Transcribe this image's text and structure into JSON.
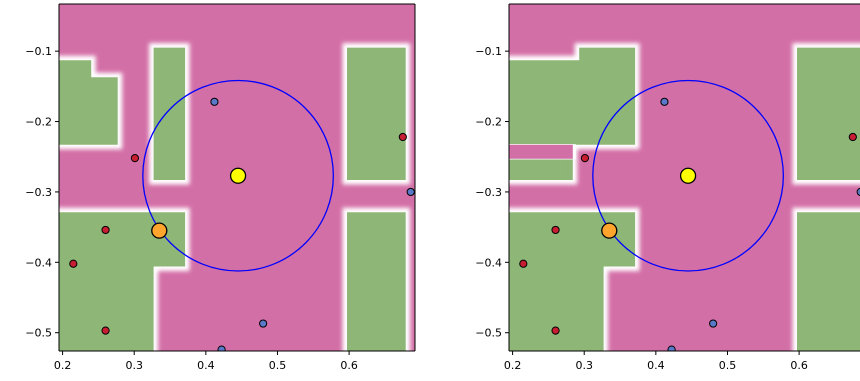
{
  "chart_data": [
    {
      "type": "heatmap",
      "xlim": [
        0.195,
        0.692
      ],
      "ylim": [
        -0.526,
        -0.033
      ],
      "x_ticks": [
        "0.2",
        "0.3",
        "0.4",
        "0.5",
        "0.6"
      ],
      "x_tick_values": [
        0.2,
        0.3,
        0.4,
        0.5,
        0.6
      ],
      "y_ticks": [
        "−0.1",
        "−0.2",
        "−0.3",
        "−0.4",
        "−0.5"
      ],
      "y_tick_values": [
        -0.1,
        -0.2,
        -0.3,
        -0.4,
        -0.5
      ],
      "grid": false,
      "regions": [
        {
          "class": "green",
          "polygon": [
            [
              0.195,
              -0.113
            ],
            [
              0.24,
              -0.113
            ],
            [
              0.24,
              -0.137
            ],
            [
              0.277,
              -0.137
            ],
            [
              0.277,
              -0.233
            ],
            [
              0.195,
              -0.233
            ]
          ]
        },
        {
          "class": "green",
          "polygon": [
            [
              0.327,
              -0.095
            ],
            [
              0.371,
              -0.095
            ],
            [
              0.371,
              -0.283
            ],
            [
              0.327,
              -0.283
            ]
          ]
        },
        {
          "class": "green",
          "polygon": [
            [
              0.195,
              -0.329
            ],
            [
              0.371,
              -0.329
            ],
            [
              0.371,
              -0.406
            ],
            [
              0.327,
              -0.406
            ],
            [
              0.327,
              -0.526
            ],
            [
              0.195,
              -0.526
            ]
          ]
        },
        {
          "class": "green",
          "polygon": [
            [
              0.597,
              -0.095
            ],
            [
              0.679,
              -0.095
            ],
            [
              0.679,
              -0.283
            ],
            [
              0.597,
              -0.283
            ]
          ]
        },
        {
          "class": "green",
          "polygon": [
            [
              0.597,
              -0.329
            ],
            [
              0.679,
              -0.329
            ],
            [
              0.679,
              -0.526
            ],
            [
              0.597,
              -0.526
            ]
          ]
        }
      ],
      "points": [
        {
          "x": 0.412,
          "y": -0.172,
          "class": "blue"
        },
        {
          "x": 0.301,
          "y": -0.252,
          "class": "red"
        },
        {
          "x": 0.675,
          "y": -0.222,
          "class": "red"
        },
        {
          "x": 0.686,
          "y": -0.3,
          "class": "blue"
        },
        {
          "x": 0.26,
          "y": -0.354,
          "class": "red"
        },
        {
          "x": 0.215,
          "y": -0.402,
          "class": "red"
        },
        {
          "x": 0.26,
          "y": -0.497,
          "class": "red"
        },
        {
          "x": 0.48,
          "y": -0.487,
          "class": "blue"
        },
        {
          "x": 0.422,
          "y": -0.524,
          "class": "blue"
        }
      ],
      "query_point": {
        "x": 0.445,
        "y": -0.277
      },
      "neighbor_point": {
        "x": 0.335,
        "y": -0.355
      },
      "circle": {
        "cx": 0.445,
        "cy": -0.277,
        "r": 0.133
      }
    },
    {
      "type": "heatmap",
      "xlim": [
        0.195,
        0.692
      ],
      "ylim": [
        -0.526,
        -0.033
      ],
      "x_ticks": [
        "0.2",
        "0.3",
        "0.4",
        "0.5",
        "0.6"
      ],
      "x_tick_values": [
        0.2,
        0.3,
        0.4,
        0.5,
        0.6
      ],
      "y_ticks": [
        "−0.1",
        "−0.2",
        "−0.3",
        "−0.4",
        "−0.5"
      ],
      "y_tick_values": [
        -0.1,
        -0.2,
        -0.3,
        -0.4,
        -0.5
      ],
      "grid": false,
      "regions": [
        {
          "class": "green",
          "polygon": [
            [
              0.195,
              -0.113
            ],
            [
              0.293,
              -0.113
            ],
            [
              0.293,
              -0.095
            ],
            [
              0.371,
              -0.095
            ],
            [
              0.371,
              -0.233
            ],
            [
              0.284,
              -0.233
            ],
            [
              0.284,
              -0.283
            ],
            [
              0.284,
              -0.283
            ],
            [
              0.195,
              -0.283
            ]
          ]
        },
        {
          "class": "green",
          "polygon": [
            [
              0.195,
              -0.253
            ],
            [
              0.277,
              -0.253
            ],
            [
              0.277,
              -0.283
            ],
            [
              0.195,
              -0.283
            ]
          ]
        },
        {
          "class": "green",
          "polygon": [
            [
              0.195,
              -0.329
            ],
            [
              0.371,
              -0.329
            ],
            [
              0.371,
              -0.406
            ],
            [
              0.327,
              -0.406
            ],
            [
              0.327,
              -0.526
            ],
            [
              0.195,
              -0.526
            ]
          ]
        },
        {
          "class": "green",
          "polygon": [
            [
              0.597,
              -0.095
            ],
            [
              0.692,
              -0.095
            ],
            [
              0.692,
              -0.283
            ],
            [
              0.597,
              -0.283
            ]
          ]
        },
        {
          "class": "green",
          "polygon": [
            [
              0.597,
              -0.329
            ],
            [
              0.692,
              -0.329
            ],
            [
              0.692,
              -0.526
            ],
            [
              0.597,
              -0.526
            ]
          ]
        }
      ],
      "holes": [
        {
          "polygon": [
            [
              0.195,
              -0.233
            ],
            [
              0.284,
              -0.233
            ],
            [
              0.284,
              -0.253
            ],
            [
              0.195,
              -0.253
            ]
          ]
        }
      ],
      "points": [
        {
          "x": 0.412,
          "y": -0.172,
          "class": "blue"
        },
        {
          "x": 0.301,
          "y": -0.252,
          "class": "red"
        },
        {
          "x": 0.675,
          "y": -0.222,
          "class": "red"
        },
        {
          "x": 0.686,
          "y": -0.3,
          "class": "blue"
        },
        {
          "x": 0.26,
          "y": -0.354,
          "class": "red"
        },
        {
          "x": 0.215,
          "y": -0.402,
          "class": "red"
        },
        {
          "x": 0.26,
          "y": -0.497,
          "class": "red"
        },
        {
          "x": 0.48,
          "y": -0.487,
          "class": "blue"
        },
        {
          "x": 0.422,
          "y": -0.524,
          "class": "blue"
        }
      ],
      "query_point": {
        "x": 0.445,
        "y": -0.277
      },
      "neighbor_point": {
        "x": 0.335,
        "y": -0.355
      },
      "circle": {
        "cx": 0.445,
        "cy": -0.277,
        "r": 0.133
      }
    }
  ],
  "colors": {
    "background": "#d36fa7",
    "region": "#8db677",
    "boundary": "#ffffff",
    "red_point": "#c81e32",
    "blue_point": "#5a78c8",
    "query": "#ffff00",
    "neighbor": "#ffa52d",
    "circle": "#0000ff"
  }
}
